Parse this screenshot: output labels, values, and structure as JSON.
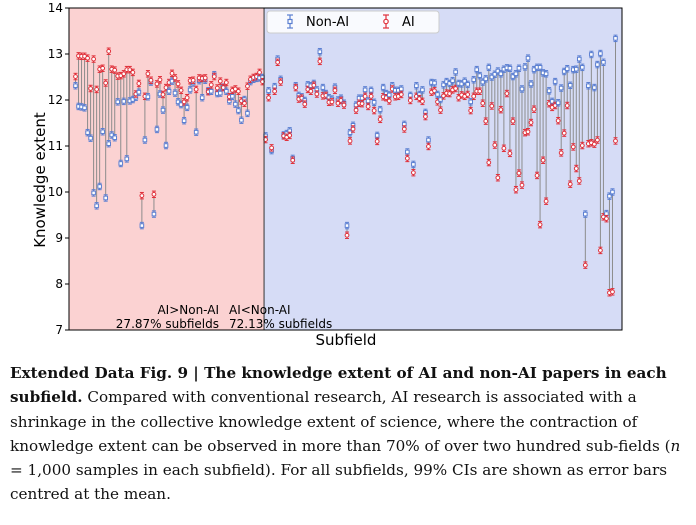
{
  "chart_data": {
    "type": "scatter",
    "title": "",
    "xlabel": "Subfield",
    "ylabel": "Knowledge extent",
    "ylim": [
      7,
      14
    ],
    "yticks": [
      7,
      8,
      9,
      10,
      11,
      12,
      13,
      14
    ],
    "legend": {
      "position": "top-center",
      "entries": [
        "Non-AI",
        "AI"
      ]
    },
    "colors": {
      "non_ai": "#5b7fd1",
      "ai": "#e0303a",
      "connector": "#8c8c8c",
      "region_ai_gt": "#fbd2d2",
      "region_ai_lt": "#d6dcf6",
      "divider": "#333333"
    },
    "split_index": 63,
    "regions": [
      {
        "label": "AI>Non-AI",
        "subtitle": "27.87% subfields"
      },
      {
        "label": "AI<Non-AI",
        "subtitle": "72.13% subfields"
      }
    ],
    "series": [
      {
        "name": "Non-AI",
        "values": [
          12.31,
          11.86,
          11.85,
          11.83,
          11.29,
          11.17,
          9.98,
          9.7,
          10.12,
          11.31,
          9.87,
          11.05,
          11.24,
          11.18,
          11.96,
          10.62,
          11.97,
          10.72,
          11.98,
          12.01,
          12.06,
          12.17,
          9.27,
          11.13,
          12.07,
          12.39,
          9.52,
          11.36,
          12.13,
          11.78,
          11.01,
          12.19,
          12.41,
          12.15,
          11.96,
          11.9,
          11.55,
          11.84,
          12.22,
          12.37,
          11.3,
          12.42,
          12.05,
          12.43,
          12.2,
          12.19,
          12.55,
          12.14,
          12.15,
          12.28,
          12.19,
          11.98,
          12.08,
          11.91,
          11.77,
          11.56,
          12.01,
          11.71,
          12.4,
          12.45,
          12.47,
          12.48,
          12.49,
          11.22,
          12.2,
          10.9,
          12.29,
          12.89,
          12.45,
          11.24,
          11.27,
          11.33,
          10.73,
          12.31,
          12.1,
          12.07,
          11.99,
          12.33,
          12.31,
          12.36,
          12.22,
          13.05,
          12.27,
          12.14,
          12.05,
          12.02,
          12.28,
          12.0,
          12.04,
          11.93,
          9.27,
          11.29,
          11.45,
          11.89,
          12.04,
          12.04,
          12.22,
          11.98,
          12.21,
          11.95,
          11.23,
          11.79,
          12.27,
          12.14,
          12.11,
          12.31,
          12.21,
          12.21,
          12.24,
          11.47,
          10.87,
          12.1,
          10.6,
          12.31,
          12.12,
          12.22,
          11.73,
          11.13,
          12.38,
          12.37,
          12.12,
          12.01,
          12.33,
          12.4,
          12.36,
          12.42,
          12.61,
          12.36,
          12.35,
          12.41,
          12.34,
          11.96,
          12.44,
          12.66,
          12.53,
          12.39,
          12.46,
          12.71,
          12.5,
          12.56,
          12.63,
          12.57,
          12.67,
          12.7,
          12.69,
          12.51,
          12.57,
          12.69,
          12.24,
          12.72,
          12.91,
          12.35,
          12.66,
          12.71,
          12.71,
          12.59,
          12.57,
          12.2,
          11.97,
          12.4,
          11.94,
          12.26,
          12.62,
          12.68,
          12.32,
          12.66,
          12.67,
          12.89,
          12.71,
          9.52,
          12.31,
          12.99,
          12.27,
          12.77,
          13.01,
          12.82,
          9.53,
          9.91,
          10.0,
          13.34
        ]
      },
      {
        "name": "AI",
        "values": [
          12.51,
          12.96,
          12.95,
          12.95,
          12.91,
          12.25,
          12.89,
          12.23,
          12.67,
          12.69,
          12.37,
          13.06,
          12.67,
          12.65,
          12.52,
          12.53,
          12.57,
          12.66,
          12.66,
          12.6,
          12.13,
          12.36,
          9.92,
          12.08,
          12.57,
          12.43,
          9.95,
          12.35,
          12.44,
          12.12,
          12.27,
          12.38,
          12.58,
          12.48,
          12.35,
          12.21,
          11.96,
          12.05,
          12.42,
          12.43,
          12.23,
          12.48,
          12.47,
          12.48,
          12.18,
          12.33,
          12.51,
          12.26,
          12.41,
          12.27,
          12.38,
          12.07,
          12.21,
          12.24,
          12.19,
          11.98,
          11.93,
          12.3,
          12.45,
          12.49,
          12.51,
          12.6,
          12.4,
          11.14,
          12.05,
          10.96,
          12.19,
          12.82,
          12.39,
          11.22,
          11.19,
          11.23,
          10.69,
          12.27,
          12.02,
          12.04,
          11.91,
          12.23,
          12.19,
          12.32,
          12.13,
          12.84,
          12.09,
          12.1,
          11.95,
          11.96,
          12.21,
          11.93,
          11.99,
          11.89,
          9.06,
          11.11,
          11.37,
          11.78,
          11.93,
          11.92,
          12.08,
          11.86,
          12.08,
          11.77,
          11.1,
          11.58,
          12.07,
          12.05,
          11.98,
          12.24,
          12.07,
          12.08,
          12.12,
          11.37,
          10.73,
          11.99,
          10.42,
          12.08,
          12.03,
          11.97,
          11.64,
          10.99,
          12.17,
          12.2,
          11.96,
          11.78,
          12.09,
          12.15,
          12.14,
          12.22,
          12.25,
          12.05,
          12.11,
          12.08,
          12.12,
          11.77,
          12.08,
          12.19,
          12.19,
          11.93,
          11.54,
          10.64,
          11.87,
          11.02,
          10.31,
          11.79,
          10.95,
          12.14,
          10.84,
          11.54,
          10.05,
          10.41,
          10.15,
          11.29,
          11.31,
          11.51,
          11.8,
          10.36,
          9.29,
          10.69,
          9.8,
          11.92,
          11.84,
          11.88,
          11.55,
          10.85,
          11.28,
          11.88,
          10.17,
          10.98,
          10.51,
          10.24,
          11.01,
          8.41,
          11.05,
          11.07,
          11.04,
          11.13,
          8.73,
          9.46,
          9.42,
          7.81,
          7.83,
          11.11
        ]
      }
    ]
  },
  "caption": {
    "bold_text": "Extended Data Fig. 9 | The knowledge extent of AI and non-AI papers in each subfield.",
    "text_part1": " Compared with conventional research, AI research is associated with a shrinkage in the collective knowledge extent of science, where the contraction of knowledge extent can be observed in more than 70% of over two hundred sub-fields (",
    "n_symbol": "n",
    "text_part2": " = 1,000 samples in each subfield). For all subfields, 99% CIs are shown as error bars centred at the mean."
  }
}
